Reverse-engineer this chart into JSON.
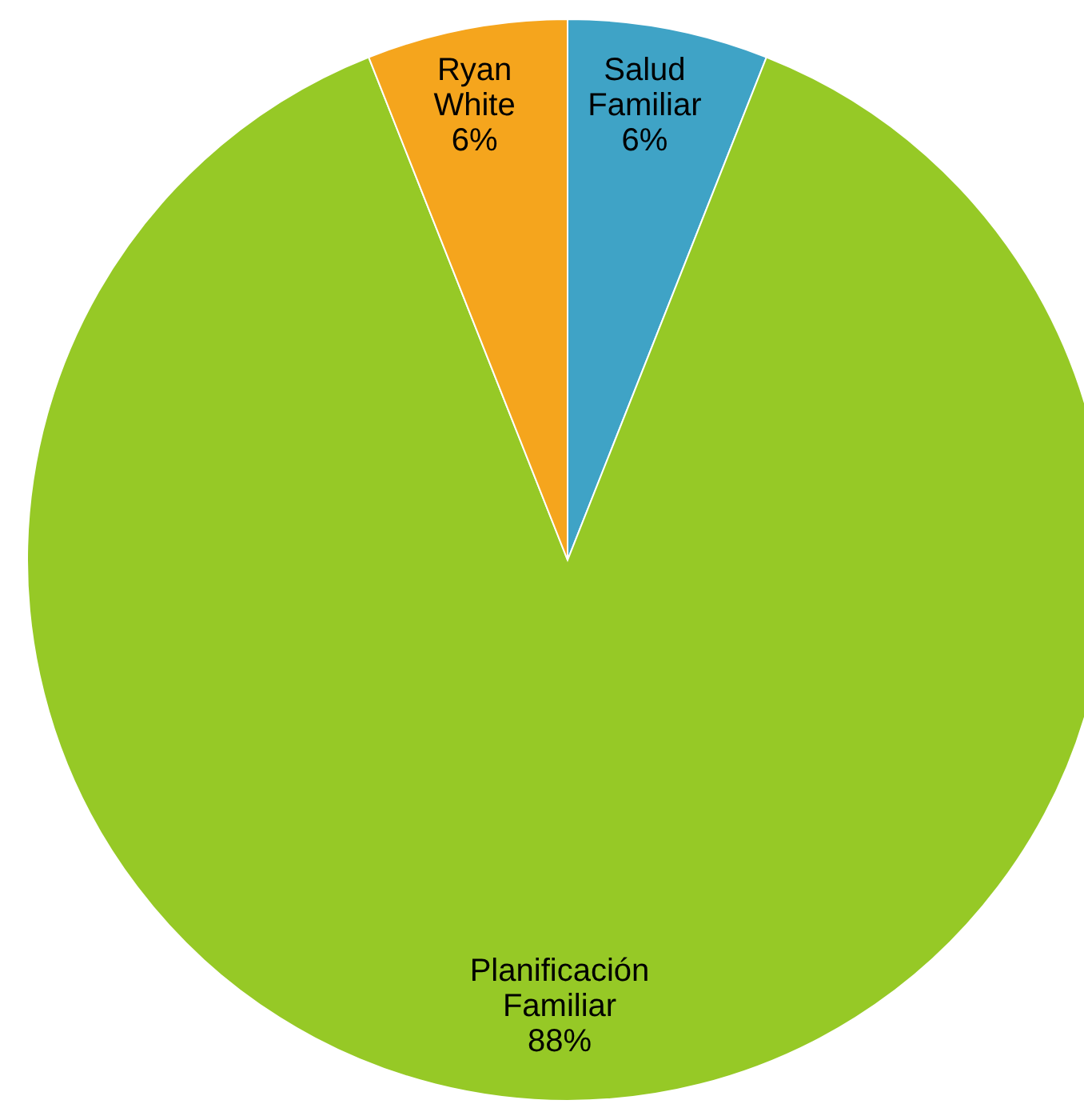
{
  "chart_data": {
    "type": "pie",
    "categories": [
      "Salud Familiar",
      "Planificación Familiar",
      "Ryan White"
    ],
    "values": [
      6,
      88,
      6
    ],
    "colors": [
      "#3fa3c6",
      "#96c926",
      "#f5a51d"
    ],
    "value_labels": [
      "6%",
      "88%",
      "6%"
    ]
  }
}
